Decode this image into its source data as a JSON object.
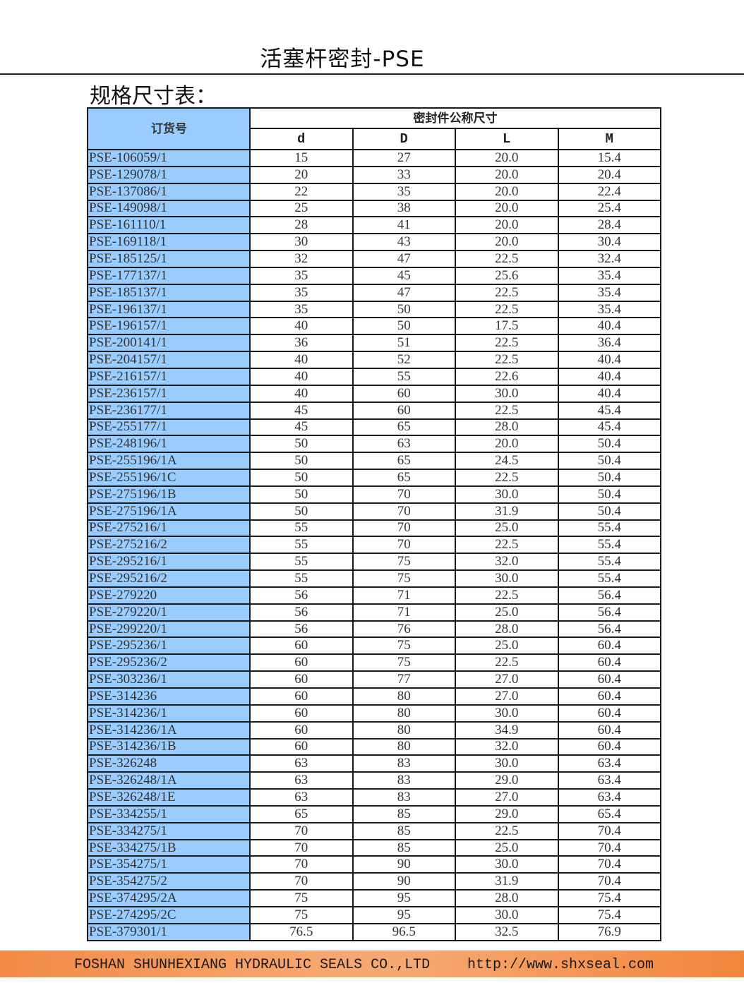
{
  "title": "活塞杆密封-PSE",
  "subtitle": "规格尺寸表：",
  "table": {
    "order_header": "订货号",
    "group_header": "密封件公称尺寸",
    "columns": [
      "d",
      "D",
      "L",
      "M"
    ],
    "rows": [
      [
        "PSE-106059/1",
        "15",
        "27",
        "20.0",
        "15.4"
      ],
      [
        "PSE-129078/1",
        "20",
        "33",
        "20.0",
        "20.4"
      ],
      [
        "PSE-137086/1",
        "22",
        "35",
        "20.0",
        "22.4"
      ],
      [
        "PSE-149098/1",
        "25",
        "38",
        "20.0",
        "25.4"
      ],
      [
        "PSE-161110/1",
        "28",
        "41",
        "20.0",
        "28.4"
      ],
      [
        "PSE-169118/1",
        "30",
        "43",
        "20.0",
        "30.4"
      ],
      [
        "PSE-185125/1",
        "32",
        "47",
        "22.5",
        "32.4"
      ],
      [
        "PSE-177137/1",
        "35",
        "45",
        "25.6",
        "35.4"
      ],
      [
        "PSE-185137/1",
        "35",
        "47",
        "22.5",
        "35.4"
      ],
      [
        "PSE-196137/1",
        "35",
        "50",
        "22.5",
        "35.4"
      ],
      [
        "PSE-196157/1",
        "40",
        "50",
        "17.5",
        "40.4"
      ],
      [
        "PSE-200141/1",
        "36",
        "51",
        "22.5",
        "36.4"
      ],
      [
        "PSE-204157/1",
        "40",
        "52",
        "22.5",
        "40.4"
      ],
      [
        "PSE-216157/1",
        "40",
        "55",
        "22.6",
        "40.4"
      ],
      [
        "PSE-236157/1",
        "40",
        "60",
        "30.0",
        "40.4"
      ],
      [
        "PSE-236177/1",
        "45",
        "60",
        "22.5",
        "45.4"
      ],
      [
        "PSE-255177/1",
        "45",
        "65",
        "28.0",
        "45.4"
      ],
      [
        "PSE-248196/1",
        "50",
        "63",
        "20.0",
        "50.4"
      ],
      [
        "PSE-255196/1A",
        "50",
        "65",
        "24.5",
        "50.4"
      ],
      [
        "PSE-255196/1C",
        "50",
        "65",
        "22.5",
        "50.4"
      ],
      [
        "PSE-275196/1B",
        "50",
        "70",
        "30.0",
        "50.4"
      ],
      [
        "PSE-275196/1A",
        "50",
        "70",
        "31.9",
        "50.4"
      ],
      [
        "PSE-275216/1",
        "55",
        "70",
        "25.0",
        "55.4"
      ],
      [
        "PSE-275216/2",
        "55",
        "70",
        "22.5",
        "55.4"
      ],
      [
        "PSE-295216/1",
        "55",
        "75",
        "32.0",
        "55.4"
      ],
      [
        "PSE-295216/2",
        "55",
        "75",
        "30.0",
        "55.4"
      ],
      [
        "PSE-279220",
        "56",
        "71",
        "22.5",
        "56.4"
      ],
      [
        "PSE-279220/1",
        "56",
        "71",
        "25.0",
        "56.4"
      ],
      [
        "PSE-299220/1",
        "56",
        "76",
        "28.0",
        "56.4"
      ],
      [
        "PSE-295236/1",
        "60",
        "75",
        "25.0",
        "60.4"
      ],
      [
        "PSE-295236/2",
        "60",
        "75",
        "22.5",
        "60.4"
      ],
      [
        "PSE-303236/1",
        "60",
        "77",
        "27.0",
        "60.4"
      ],
      [
        "PSE-314236",
        "60",
        "80",
        "27.0",
        "60.4"
      ],
      [
        "PSE-314236/1",
        "60",
        "80",
        "30.0",
        "60.4"
      ],
      [
        "PSE-314236/1A",
        "60",
        "80",
        "34.9",
        "60.4"
      ],
      [
        "PSE-314236/1B",
        "60",
        "80",
        "32.0",
        "60.4"
      ],
      [
        "PSE-326248",
        "63",
        "83",
        "30.0",
        "63.4"
      ],
      [
        "PSE-326248/1A",
        "63",
        "83",
        "29.0",
        "63.4"
      ],
      [
        "PSE-326248/1E",
        "63",
        "83",
        "27.0",
        "63.4"
      ],
      [
        "PSE-334255/1",
        "65",
        "85",
        "29.0",
        "65.4"
      ],
      [
        "PSE-334275/1",
        "70",
        "85",
        "22.5",
        "70.4"
      ],
      [
        "PSE-334275/1B",
        "70",
        "85",
        "25.0",
        "70.4"
      ],
      [
        "PSE-354275/1",
        "70",
        "90",
        "30.0",
        "70.4"
      ],
      [
        "PSE-354275/2",
        "70",
        "90",
        "31.9",
        "70.4"
      ],
      [
        "PSE-374295/2A",
        "75",
        "95",
        "28.0",
        "75.4"
      ],
      [
        "PSE-274295/2C",
        "75",
        "95",
        "30.0",
        "75.4"
      ],
      [
        "PSE-379301/1",
        "76.5",
        "96.5",
        "32.5",
        "76.9"
      ]
    ]
  },
  "footer": {
    "company": "FOSHAN SHUNHEXIANG HYDRAULIC SEALS CO.,LTD",
    "url": "http://www.shxseal.com"
  },
  "colors": {
    "order_column": "#99ccff",
    "footer_band": "#f28a45"
  }
}
